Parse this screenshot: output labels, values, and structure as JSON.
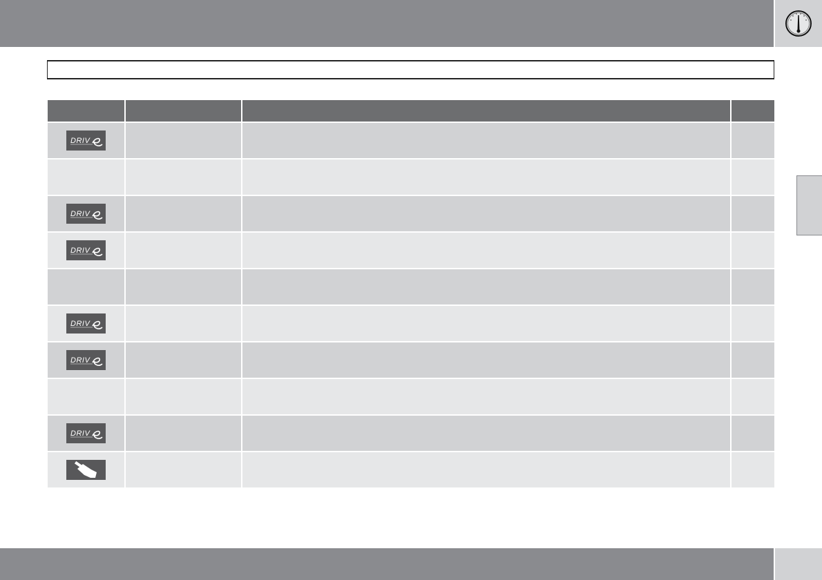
{
  "header": {
    "gauge_icon": "speedometer-gauge-icon"
  },
  "title": "",
  "table": {
    "columns": [
      "",
      "",
      "",
      ""
    ],
    "rows": [
      {
        "icon": "drive-e",
        "logo_text": "DRIVe",
        "shade": "odd"
      },
      {
        "icon": "none",
        "shade": "even"
      },
      {
        "icon": "drive-e",
        "logo_text": "DRIVe",
        "shade": "odd"
      },
      {
        "icon": "drive-e",
        "logo_text": "DRIVe",
        "shade": "even"
      },
      {
        "icon": "none",
        "shade": "odd"
      },
      {
        "icon": "drive-e",
        "logo_text": "DRIVe",
        "shade": "even"
      },
      {
        "icon": "drive-e",
        "logo_text": "DRIVe",
        "shade": "odd"
      },
      {
        "icon": "none",
        "shade": "even"
      },
      {
        "icon": "drive-e",
        "logo_text": "DRIVe",
        "shade": "odd"
      },
      {
        "icon": "hand-card",
        "shade": "even"
      }
    ]
  },
  "colors": {
    "bar": "#8a8b8f",
    "header": "#6d6e70",
    "row_odd": "#d1d2d4",
    "row_even": "#e6e7e8",
    "icon_bg": "#58585a"
  }
}
